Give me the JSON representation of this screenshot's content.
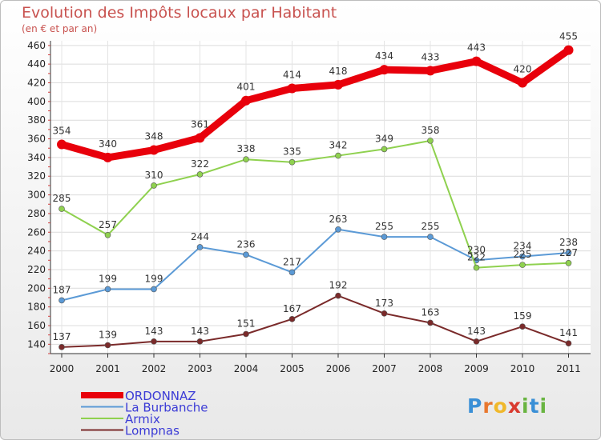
{
  "title": "Evolution des Impôts locaux par Habitant",
  "subtitle": "(en € et par an)",
  "logo": {
    "letters": [
      "P",
      "r",
      "o",
      "x",
      "i",
      "t",
      "i"
    ],
    "colors": [
      "#3a8fd6",
      "#e8772e",
      "#f0b82b",
      "#d93a2f",
      "#69b441",
      "#3a8fd6",
      "#69b441"
    ]
  },
  "chart_data": {
    "type": "line",
    "title": "Evolution des Impôts locaux par Habitant",
    "subtitle": "(en € et par an)",
    "x": [
      "2000",
      "2001",
      "2002",
      "2003",
      "2004",
      "2005",
      "2006",
      "2007",
      "2008",
      "2009",
      "2010",
      "2011"
    ],
    "ylim": [
      130,
      465
    ],
    "yticks": [
      140,
      160,
      180,
      200,
      220,
      240,
      260,
      280,
      300,
      320,
      340,
      360,
      380,
      400,
      420,
      440,
      460
    ],
    "grid": true,
    "legend_position": "bottom-left",
    "series": [
      {
        "name": "ORDONNAZ",
        "color": "#e8000b",
        "values": [
          354,
          340,
          348,
          361,
          401,
          414,
          418,
          434,
          433,
          443,
          420,
          455
        ],
        "labels": [
          "354",
          "340",
          "348",
          "361",
          "401",
          "414",
          "418",
          "434",
          "433",
          "443",
          "420",
          "455"
        ]
      },
      {
        "name": "La Burbanche",
        "color": "#5b9ad6",
        "values": [
          187,
          199,
          199,
          244,
          236,
          217,
          263,
          255,
          255,
          230,
          234,
          238
        ],
        "labels": [
          "187",
          "199",
          "199",
          "244",
          "236",
          "217",
          "263",
          "255",
          "255",
          "230",
          "234",
          "238"
        ]
      },
      {
        "name": "Armix",
        "color": "#8fd14f",
        "values": [
          285,
          257,
          310,
          322,
          338,
          335,
          342,
          349,
          358,
          222,
          225,
          227
        ],
        "labels": [
          "285",
          "257",
          "310",
          "322",
          "338",
          "335",
          "342",
          "349",
          "358",
          "222",
          "225",
          "227"
        ]
      },
      {
        "name": "Lompnas",
        "color": "#7a2a2a",
        "values": [
          137,
          139,
          143,
          143,
          151,
          167,
          192,
          173,
          163,
          143,
          159,
          141
        ],
        "labels": [
          "137",
          "139",
          "143",
          "143",
          "151",
          "167",
          "192",
          "173",
          "163",
          "143",
          "159",
          "141"
        ]
      }
    ]
  }
}
